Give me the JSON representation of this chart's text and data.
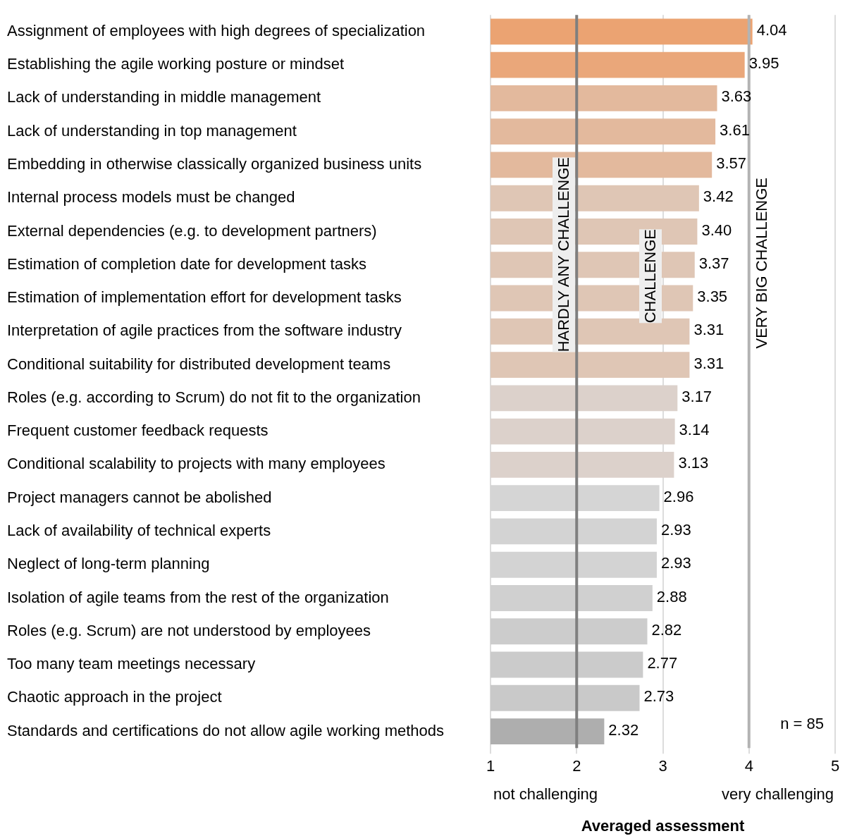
{
  "chart_data": {
    "type": "bar",
    "orientation": "horizontal",
    "xlabel": "Averaged assessment",
    "categories": [
      "Assignment of employees with high degrees of specialization",
      "Establishing the agile working posture or mindset",
      "Lack of understanding in middle management",
      "Lack of understanding in top management",
      "Embedding in otherwise classically organized business units",
      "Internal process models must be changed",
      "External dependencies (e.g. to development partners)",
      "Estimation of completion date for development tasks",
      "Estimation of implementation effort for development tasks",
      "Interpretation of agile practices from the software industry",
      "Conditional suitability for distributed development teams",
      "Roles (e.g. according to Scrum) do not fit to the organization",
      "Frequent customer feedback requests",
      "Conditional scalability to projects with many employees",
      "Project managers cannot be abolished",
      "Lack of availability of technical experts",
      "Neglect of long-term planning",
      "Isolation of agile teams from the rest of the organization",
      "Roles (e.g. Scrum) are not understood by employees",
      "Too many team meetings necessary",
      "Chaotic approach in the project",
      "Standards and certifications do not allow agile working methods"
    ],
    "values": [
      4.04,
      3.95,
      3.63,
      3.61,
      3.57,
      3.42,
      3.4,
      3.37,
      3.35,
      3.31,
      3.31,
      3.17,
      3.14,
      3.13,
      2.96,
      2.93,
      2.93,
      2.88,
      2.82,
      2.77,
      2.73,
      2.32
    ],
    "colors": [
      "#eba372",
      "#eaa77a",
      "#e3b99d",
      "#e3b99d",
      "#e3b99d",
      "#dfc6b5",
      "#dfc6b5",
      "#dfc6b5",
      "#dfc6b5",
      "#dfc6b5",
      "#dfc6b5",
      "#dcd1cb",
      "#dcd1cb",
      "#dcd1cb",
      "#d5d5d5",
      "#d3d3d3",
      "#d3d3d3",
      "#d0d0d0",
      "#cccccc",
      "#cbcbcb",
      "#c9c9c9",
      "#aeaeae"
    ],
    "value_labels": [
      "4.04",
      "3.95",
      "3.63",
      "3.61",
      "3.57",
      "3.42",
      "3.40",
      "3.37",
      "3.35",
      "3.31",
      "3.31",
      "3.17",
      "3.14",
      "3.13",
      "2.96",
      "2.93",
      "2.93",
      "2.88",
      "2.82",
      "2.77",
      "2.73",
      "2.32"
    ],
    "xlim": [
      1,
      5
    ],
    "xticks": [
      1,
      2,
      3,
      4,
      5
    ],
    "grid": "x",
    "ref_lines": [
      {
        "axis": "x",
        "value": 2,
        "label": "HARDLY ANY CHALLENGE",
        "color": "#7f7f7f"
      },
      {
        "axis": "x",
        "value": 4,
        "label": "VERY BIG CHALLENGE",
        "color": "#b3b3b3"
      }
    ],
    "annotations": [
      {
        "text": "CHALLENGE",
        "x": 3
      },
      "not challenging",
      "very challenging",
      "n = 85"
    ]
  }
}
